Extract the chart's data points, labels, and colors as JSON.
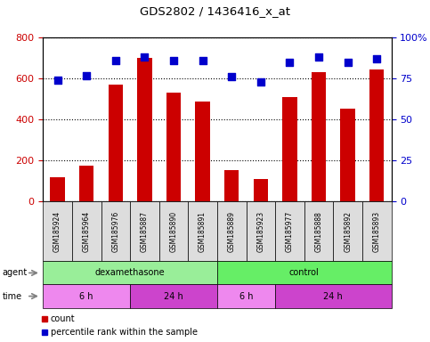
{
  "title": "GDS2802 / 1436416_x_at",
  "samples": [
    "GSM185924",
    "GSM185964",
    "GSM185976",
    "GSM185887",
    "GSM185890",
    "GSM185891",
    "GSM185889",
    "GSM185923",
    "GSM185977",
    "GSM185888",
    "GSM185892",
    "GSM185893"
  ],
  "counts": [
    120,
    175,
    570,
    700,
    530,
    490,
    155,
    108,
    510,
    630,
    455,
    645
  ],
  "percentile_ranks": [
    74,
    77,
    86,
    88,
    86,
    86,
    76,
    73,
    85,
    88,
    85,
    87
  ],
  "ylim_left": [
    0,
    800
  ],
  "ylim_right": [
    0,
    100
  ],
  "yticks_left": [
    0,
    200,
    400,
    600,
    800
  ],
  "yticks_right": [
    0,
    25,
    50,
    75,
    100
  ],
  "bar_color": "#cc0000",
  "dot_color": "#0000cc",
  "agent_groups": [
    {
      "label": "dexamethasone",
      "start": 0,
      "end": 6,
      "color": "#99ee99"
    },
    {
      "label": "control",
      "start": 6,
      "end": 12,
      "color": "#66ee66"
    }
  ],
  "time_groups": [
    {
      "label": "6 h",
      "start": 0,
      "end": 3,
      "color": "#ee88ee"
    },
    {
      "label": "24 h",
      "start": 3,
      "end": 6,
      "color": "#cc44cc"
    },
    {
      "label": "6 h",
      "start": 6,
      "end": 8,
      "color": "#ee88ee"
    },
    {
      "label": "24 h",
      "start": 8,
      "end": 12,
      "color": "#cc44cc"
    }
  ],
  "tick_label_color_left": "#cc0000",
  "tick_label_color_right": "#0000cc",
  "legend_count_color": "#cc0000",
  "legend_pct_color": "#0000cc",
  "label_area_color": "#dddddd"
}
